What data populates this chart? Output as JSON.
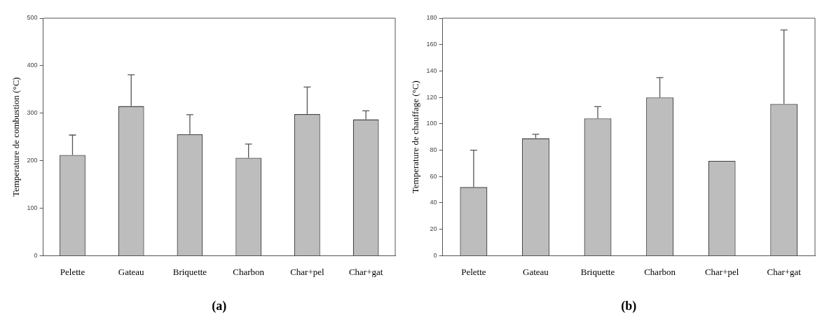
{
  "chart_data": [
    {
      "type": "bar",
      "ylabel": "Temperature de combustion (°C)",
      "categories": [
        "Pelette",
        "Gateau",
        "Briquette",
        "Charbon",
        "Char+pel",
        "Char+gat"
      ],
      "values": [
        212,
        315,
        256,
        206,
        298,
        287
      ],
      "errors": [
        [
          212,
          254
        ],
        [
          315,
          381
        ],
        [
          256,
          297
        ],
        [
          206,
          235
        ],
        [
          298,
          355
        ],
        [
          287,
          305
        ]
      ],
      "color": "#bdbdbd",
      "ylim": [
        0,
        500
      ],
      "yticks": [
        0,
        100,
        200,
        300,
        400,
        500
      ],
      "grid": false,
      "legend": false,
      "annotations": [
        "(a)"
      ]
    },
    {
      "type": "bar",
      "ylabel": "Temperature de chauffage (°C)",
      "categories": [
        "Pelette",
        "Gateau",
        "Briquette",
        "Charbon",
        "Char+pel",
        "Char+gat"
      ],
      "values": [
        52,
        89,
        104,
        120,
        72,
        115
      ],
      "errors": [
        [
          52,
          80
        ],
        [
          89,
          92
        ],
        [
          104,
          113
        ],
        [
          120,
          135
        ],
        null,
        [
          115,
          171
        ]
      ],
      "color": "#bdbdbd",
      "ylim": [
        0,
        180
      ],
      "yticks": [
        0,
        20,
        40,
        60,
        80,
        100,
        120,
        140,
        160,
        180
      ],
      "grid": false,
      "legend": false,
      "annotations": [
        "(b)"
      ]
    }
  ]
}
